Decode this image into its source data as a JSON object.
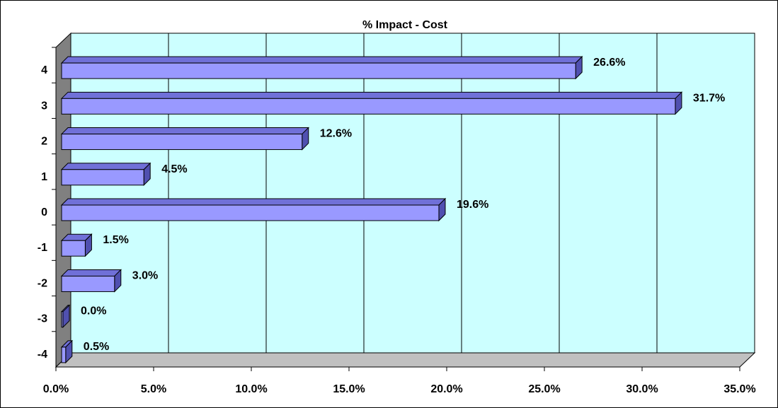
{
  "chart_data": {
    "type": "bar",
    "orientation": "horizontal",
    "three_d": true,
    "title": "% Impact - Cost",
    "xlabel": "",
    "ylabel": "",
    "categories": [
      "4",
      "3",
      "2",
      "1",
      "0",
      "-1",
      "-2",
      "-3",
      "-4"
    ],
    "values": [
      26.6,
      31.7,
      12.6,
      4.5,
      19.6,
      1.5,
      3.0,
      0.0,
      0.5
    ],
    "value_labels": [
      "26.6%",
      "31.7%",
      "12.6%",
      "4.5%",
      "19.6%",
      "1.5%",
      "3.0%",
      "0.0%",
      "0.5%"
    ],
    "xlim": [
      0,
      35
    ],
    "x_ticks": [
      0,
      5,
      10,
      15,
      20,
      25,
      30,
      35
    ],
    "x_tick_labels": [
      "0.0%",
      "5.0%",
      "10.0%",
      "15.0%",
      "20.0%",
      "25.0%",
      "30.0%",
      "35.0%"
    ],
    "grid": true,
    "legend": "none",
    "colors": {
      "plot_background": "#ccffff",
      "bar_face": "#9999ff",
      "bar_top": "#7070d8",
      "bar_side": "#5050b0",
      "wall": "#808080",
      "floor": "#c0c0c0",
      "gridline": "#000000"
    }
  }
}
